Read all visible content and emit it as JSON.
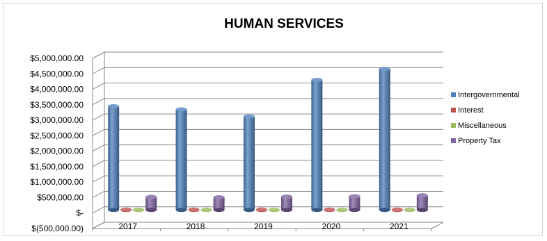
{
  "chart_data": {
    "type": "bar",
    "title": "HUMAN SERVICES",
    "xlabel": "",
    "ylabel": "",
    "categories": [
      "2017",
      "2018",
      "2019",
      "2020",
      "2021"
    ],
    "ylim": [
      -500000,
      5000000
    ],
    "yticks": [
      -500000,
      0,
      500000,
      1000000,
      1500000,
      2000000,
      2500000,
      3000000,
      3500000,
      4000000,
      4500000,
      5000000
    ],
    "ytick_labels": [
      "$(500,000.00)",
      "$-",
      "$500,000.00",
      "$1,000,000.00",
      "$1,500,000.00",
      "$2,000,000.00",
      "$2,500,000.00",
      "$3,000,000.00",
      "$3,500,000.00",
      "$4,000,000.00",
      "$4,500,000.00",
      "$5,000,000.00"
    ],
    "grid": true,
    "style": "3d-cylinder",
    "legend_position": "right",
    "series": [
      {
        "name": "Intergovernmental",
        "color": "#4f81bd",
        "values": [
          3350000,
          3250000,
          3020000,
          4200000,
          4560000
        ]
      },
      {
        "name": "Interest",
        "color": "#c0504d",
        "values": [
          12000,
          11000,
          14000,
          12000,
          10000
        ]
      },
      {
        "name": "Miscellaneous",
        "color": "#9bbb59",
        "values": [
          6000,
          5000,
          6000,
          5000,
          6000
        ]
      },
      {
        "name": "Property Tax",
        "color": "#8064a2",
        "values": [
          420000,
          410000,
          430000,
          440000,
          470000
        ]
      }
    ]
  }
}
